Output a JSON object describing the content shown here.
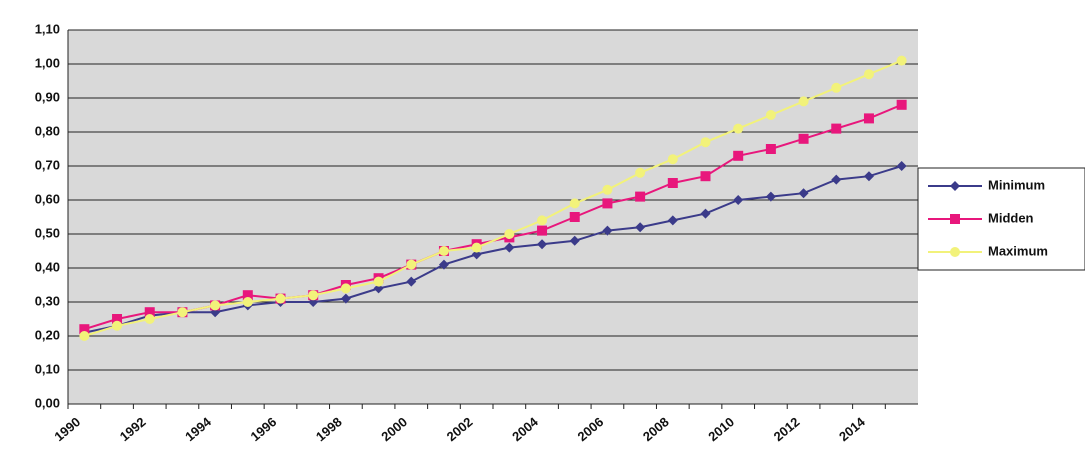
{
  "chart_data": {
    "type": "line",
    "categories": [
      "1990",
      null,
      "1992",
      null,
      "1994",
      null,
      "1996",
      null,
      "1998",
      null,
      "2000",
      null,
      "2002",
      null,
      "2004",
      null,
      "2006",
      null,
      "2008",
      null,
      "2010",
      null,
      "2012",
      null,
      "2014",
      null
    ],
    "series": [
      {
        "name": "Minimum",
        "color": "#3b3b8a",
        "marker": "diamond",
        "values": [
          0.21,
          0.23,
          0.26,
          0.27,
          0.27,
          0.29,
          0.3,
          0.3,
          0.31,
          0.34,
          0.36,
          0.41,
          0.44,
          0.46,
          0.47,
          0.48,
          0.51,
          0.52,
          0.54,
          0.56,
          0.6,
          0.61,
          0.62,
          0.66,
          0.67,
          0.7
        ]
      },
      {
        "name": "Midden",
        "color": "#e8177c",
        "marker": "square",
        "values": [
          0.22,
          0.25,
          0.27,
          0.27,
          0.29,
          0.32,
          0.31,
          0.32,
          0.35,
          0.37,
          0.41,
          0.45,
          0.47,
          0.49,
          0.51,
          0.55,
          0.59,
          0.61,
          0.65,
          0.67,
          0.73,
          0.75,
          0.78,
          0.81,
          0.84,
          0.88
        ]
      },
      {
        "name": "Maximum",
        "color": "#f2f27a",
        "marker": "circle",
        "values": [
          0.2,
          0.23,
          0.25,
          0.27,
          0.29,
          0.3,
          0.31,
          0.32,
          0.34,
          0.36,
          0.41,
          0.45,
          0.46,
          0.5,
          0.54,
          0.59,
          0.63,
          0.68,
          0.72,
          0.77,
          0.81,
          0.85,
          0.89,
          0.93,
          0.97,
          1.01
        ]
      }
    ],
    "ylim": [
      0,
      1.1
    ],
    "yticks": [
      {
        "value": 0,
        "label": "0,00"
      },
      {
        "value": 0.1,
        "label": "0,10"
      },
      {
        "value": 0.2,
        "label": "0,20"
      },
      {
        "value": 0.3,
        "label": "0,30"
      },
      {
        "value": 0.4,
        "label": "0,40"
      },
      {
        "value": 0.5,
        "label": "0,50"
      },
      {
        "value": 0.6,
        "label": "0,60"
      },
      {
        "value": 0.7,
        "label": "0,70"
      },
      {
        "value": 0.8,
        "label": "0,80"
      },
      {
        "value": 0.9,
        "label": "0,90"
      },
      {
        "value": 1.0,
        "label": "1,00"
      },
      {
        "value": 1.1,
        "label": "1,10"
      }
    ],
    "grid": true
  }
}
